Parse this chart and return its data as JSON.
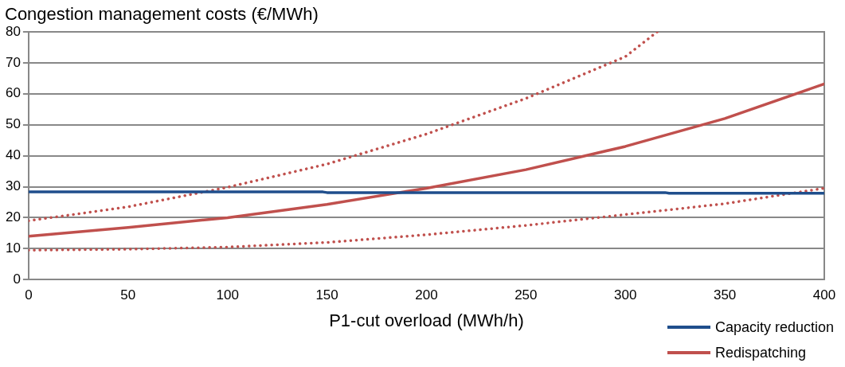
{
  "chart_data": {
    "type": "line",
    "ylabel": "Congestion management costs (€/MWh)",
    "xlabel": "P1-cut overload (MWh/h)",
    "xlim": [
      0,
      400
    ],
    "xticks": [
      0,
      50,
      100,
      150,
      200,
      250,
      300,
      350,
      400
    ],
    "ylim": [
      0,
      80
    ],
    "yticks": [
      0,
      10,
      20,
      30,
      40,
      50,
      60,
      70,
      80
    ],
    "grid": "y",
    "legend": "bottom right",
    "marker": "none",
    "series": [
      {
        "name": "Capacity reduction",
        "color": "#1f4e8c",
        "x": [
          0,
          148,
          150,
          320,
          322,
          400
        ],
        "values": [
          28.3,
          28.3,
          28.1,
          28.1,
          27.9,
          27.9
        ]
      },
      {
        "name": "Redispatching",
        "color": "#c0504d",
        "x": [
          0,
          50,
          100,
          150,
          200,
          250,
          300,
          350,
          400
        ],
        "values": [
          14,
          16.8,
          20,
          24.3,
          29.5,
          35.5,
          43,
          52,
          63.2
        ]
      },
      {
        "color": "#c0504d",
        "line_style": "dotted",
        "x": [
          0,
          50,
          100,
          150,
          200,
          250,
          300,
          316
        ],
        "values": [
          19,
          23.5,
          29.8,
          37.3,
          47,
          58.5,
          72,
          80
        ]
      },
      {
        "color": "#c0504d",
        "line_style": "dotted",
        "x": [
          0,
          50,
          100,
          150,
          200,
          250,
          300,
          350,
          400
        ],
        "values": [
          9.5,
          9.8,
          10.5,
          12,
          14.5,
          17.5,
          21,
          24.5,
          29.5
        ]
      }
    ]
  }
}
